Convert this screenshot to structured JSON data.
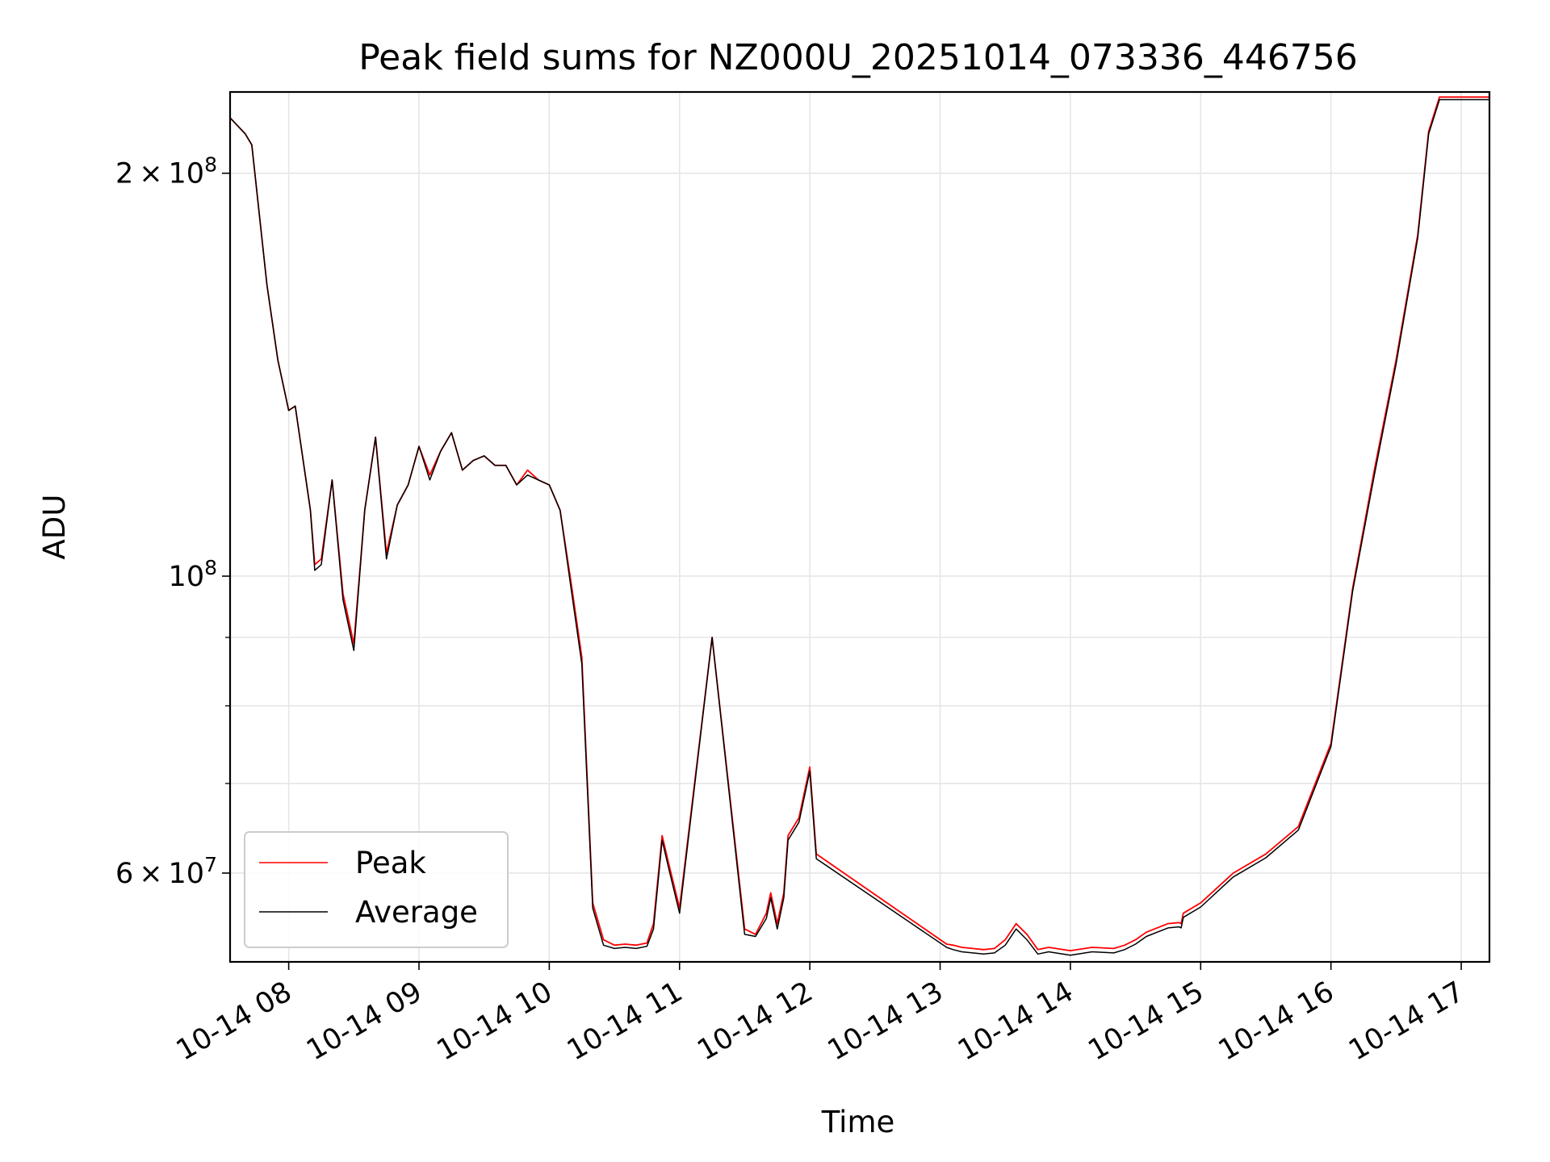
{
  "chart_data": {
    "type": "line",
    "title": "Peak field sums for NZ000U_20251014_073336_446756",
    "xlabel": "Time",
    "ylabel": "ADU",
    "y_scale": "log",
    "grid": true,
    "legend_position": "lower-left",
    "x_tick_labels": [
      "10-14 08",
      "10-14 09",
      "10-14 10",
      "10-14 11",
      "10-14 12",
      "10-14 13",
      "10-14 14",
      "10-14 15",
      "10-14 16",
      "10-14 17"
    ],
    "x_range": [
      "2025-10-14 07:33",
      "2025-10-14 17:13"
    ],
    "ylim": [
      51500000,
      230000000
    ],
    "y_major_ticks": [
      {
        "value": 200000000,
        "label_mantissa": "2",
        "label_exponent": "8"
      },
      {
        "value": 100000000,
        "label_mantissa": "",
        "label_exponent": "8"
      },
      {
        "value": 60000000,
        "label_mantissa": "6",
        "label_exponent": "7"
      }
    ],
    "y_minor_ticks": [
      90000000,
      80000000,
      70000000,
      50000000
    ],
    "x": [
      "07:33",
      "07:40",
      "07:43",
      "07:50",
      "07:55",
      "08:00",
      "08:03",
      "08:10",
      "08:12",
      "08:15",
      "08:20",
      "08:25",
      "08:30",
      "08:35",
      "08:40",
      "08:45",
      "08:50",
      "08:55",
      "09:00",
      "09:05",
      "09:10",
      "09:15",
      "09:20",
      "09:25",
      "09:30",
      "09:35",
      "09:40",
      "09:45",
      "09:50",
      "09:55",
      "10:00",
      "10:05",
      "10:10",
      "10:15",
      "10:20",
      "10:25",
      "10:30",
      "10:35",
      "10:40",
      "10:45",
      "10:48",
      "10:52",
      "10:55",
      "11:00",
      "11:15",
      "11:30",
      "11:35",
      "11:40",
      "11:42",
      "11:45",
      "11:48",
      "11:50",
      "11:55",
      "12:00",
      "12:03",
      "13:03",
      "13:06",
      "13:10",
      "13:15",
      "13:20",
      "13:25",
      "13:30",
      "13:35",
      "13:40",
      "13:45",
      "13:50",
      "14:00",
      "14:10",
      "14:20",
      "14:25",
      "14:30",
      "14:35",
      "14:45",
      "14:50",
      "14:51",
      "14:52",
      "15:00",
      "15:15",
      "15:30",
      "15:45",
      "16:00",
      "16:10",
      "16:20",
      "16:30",
      "16:40",
      "16:45",
      "16:50",
      "17:00",
      "17:03",
      "17:13"
    ],
    "series": [
      {
        "name": "Peak",
        "color": "#ff0000",
        "values": [
          220000000,
          214000000,
          210000000,
          165000000,
          145000000,
          133000000,
          134000000,
          112000000,
          102000000,
          103000000,
          118000000,
          97000000,
          89000000,
          112000000,
          127000000,
          104000000,
          113000000,
          117000000,
          125000000,
          119000000,
          124000000,
          128000000,
          120000000,
          122000000,
          123000000,
          121000000,
          121000000,
          117000000,
          120000000,
          118000000,
          117000000,
          112000000,
          99000000,
          87000000,
          57000000,
          53500000,
          53000000,
          53100000,
          53000000,
          53200000,
          55000000,
          64000000,
          61000000,
          56500000,
          90000000,
          54500000,
          54000000,
          56000000,
          58000000,
          55000000,
          58000000,
          64000000,
          66000000,
          72000000,
          62000000,
          53100000,
          53000000,
          52800000,
          52700000,
          52600000,
          52700000,
          53500000,
          55000000,
          54000000,
          52600000,
          52800000,
          52500000,
          52800000,
          52700000,
          53000000,
          53500000,
          54200000,
          55000000,
          55100000,
          55000000,
          56000000,
          57000000,
          60000000,
          62000000,
          65000000,
          75000000,
          98000000,
          120000000,
          145000000,
          180000000,
          215000000,
          228000000,
          228000000,
          228000000,
          228000000
        ]
      },
      {
        "name": "Average",
        "color": "#000000",
        "values": [
          220000000,
          214000000,
          210000000,
          165000000,
          145000000,
          133000000,
          134000000,
          112000000,
          101000000,
          102000000,
          118000000,
          96000000,
          88000000,
          112000000,
          127000000,
          103000000,
          113000000,
          117000000,
          125000000,
          118000000,
          124000000,
          128000000,
          120000000,
          122000000,
          123000000,
          121000000,
          121000000,
          117000000,
          119000000,
          118000000,
          117000000,
          112000000,
          98000000,
          86000000,
          56500000,
          53000000,
          52700000,
          52800000,
          52700000,
          52900000,
          54500000,
          63500000,
          60500000,
          56000000,
          90000000,
          54000000,
          53800000,
          55500000,
          57500000,
          54500000,
          57500000,
          63500000,
          65500000,
          71500000,
          61500000,
          52800000,
          52600000,
          52400000,
          52300000,
          52200000,
          52300000,
          53000000,
          54500000,
          53500000,
          52200000,
          52400000,
          52100000,
          52400000,
          52300000,
          52600000,
          53100000,
          53800000,
          54600000,
          54700000,
          54600000,
          55600000,
          56600000,
          59600000,
          61600000,
          64600000,
          74600000,
          97500000,
          119000000,
          144000000,
          179000000,
          214000000,
          227000000,
          227000000,
          227000000,
          227000000
        ]
      }
    ]
  }
}
